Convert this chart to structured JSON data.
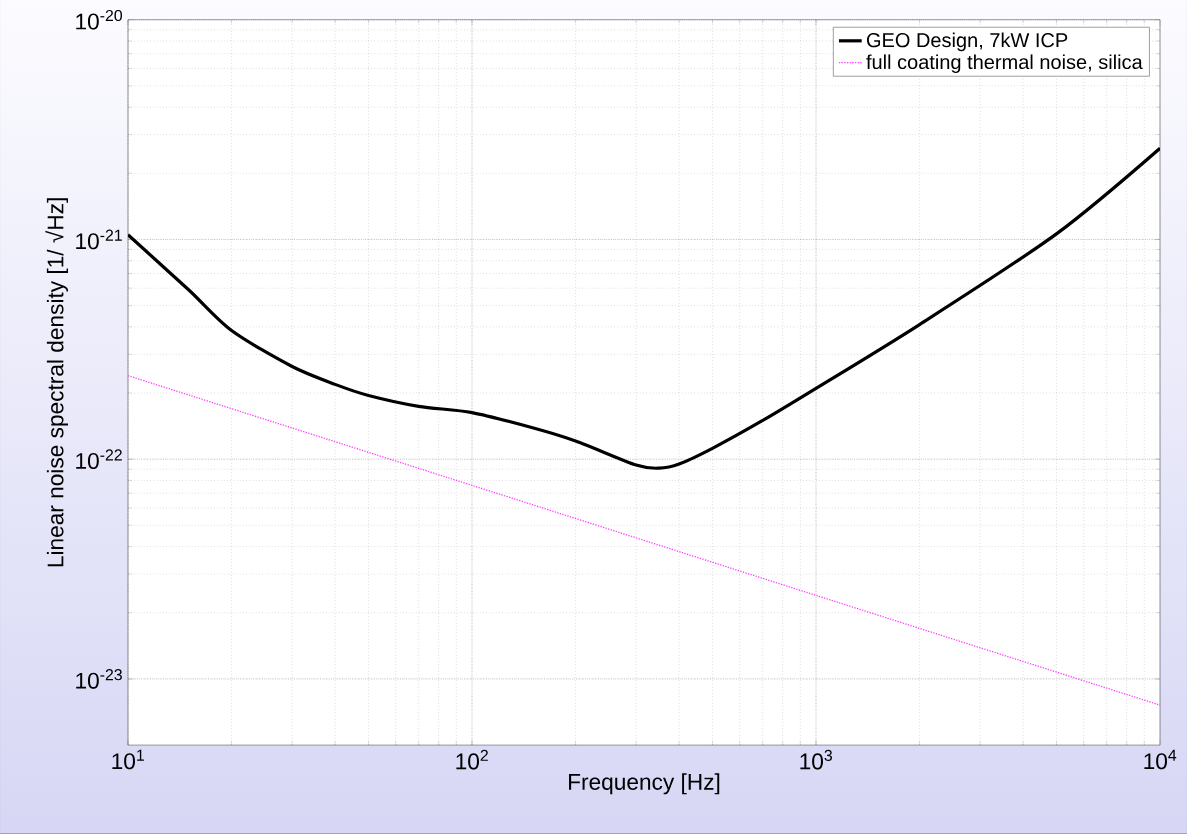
{
  "chart_data": {
    "type": "line",
    "xlabel": "Frequency  [Hz]",
    "ylabel": "Linear noise spectral density  [1/ √Hz]",
    "log": "xy",
    "grid": true,
    "legend": "top right",
    "xlim": [
      10,
      10000
    ],
    "ylim": [
      5e-24,
      1e-20
    ],
    "xticks": [
      {
        "value": 10,
        "label": "10$^{1}$"
      },
      {
        "value": 100,
        "label": "10$^{2}$"
      },
      {
        "value": 1000,
        "label": "10$^{3}$"
      },
      {
        "value": 10000,
        "label": "10$^{4}$"
      }
    ],
    "yticks": [
      {
        "value": 1e-23,
        "label": "10$^{-23}$"
      },
      {
        "value": 1e-22,
        "label": "10$^{-22}$"
      },
      {
        "value": 1e-21,
        "label": "10$^{-21}$"
      },
      {
        "value": 1e-20,
        "label": "10$^{-20}$"
      }
    ],
    "series": [
      {
        "name": "GEO Design, 7kW ICP",
        "color": "#000000",
        "line_style": "solid",
        "x": [
          10,
          15,
          20,
          30,
          40,
          50,
          70,
          100,
          150,
          200,
          300,
          350,
          400,
          500,
          700,
          1000,
          2000,
          5000,
          10000
        ],
        "values": [
          1.05e-21,
          5.9e-22,
          3.85e-22,
          2.64e-22,
          2.19e-22,
          1.95e-22,
          1.74e-22,
          1.63e-22,
          1.39e-22,
          1.21e-22,
          9.4e-23,
          9.1e-23,
          9.5e-23,
          1.12e-22,
          1.5e-22,
          2.1e-22,
          4.1e-22,
          1.06e-21,
          2.6e-21
        ]
      },
      {
        "name": "full coating thermal noise, silica",
        "color": "#ff44ff",
        "line_style": "dotted",
        "x": [
          10,
          100,
          1000,
          10000
        ],
        "values": [
          2.4e-22,
          7.6e-23,
          2.4e-23,
          7.6e-24
        ]
      }
    ]
  }
}
